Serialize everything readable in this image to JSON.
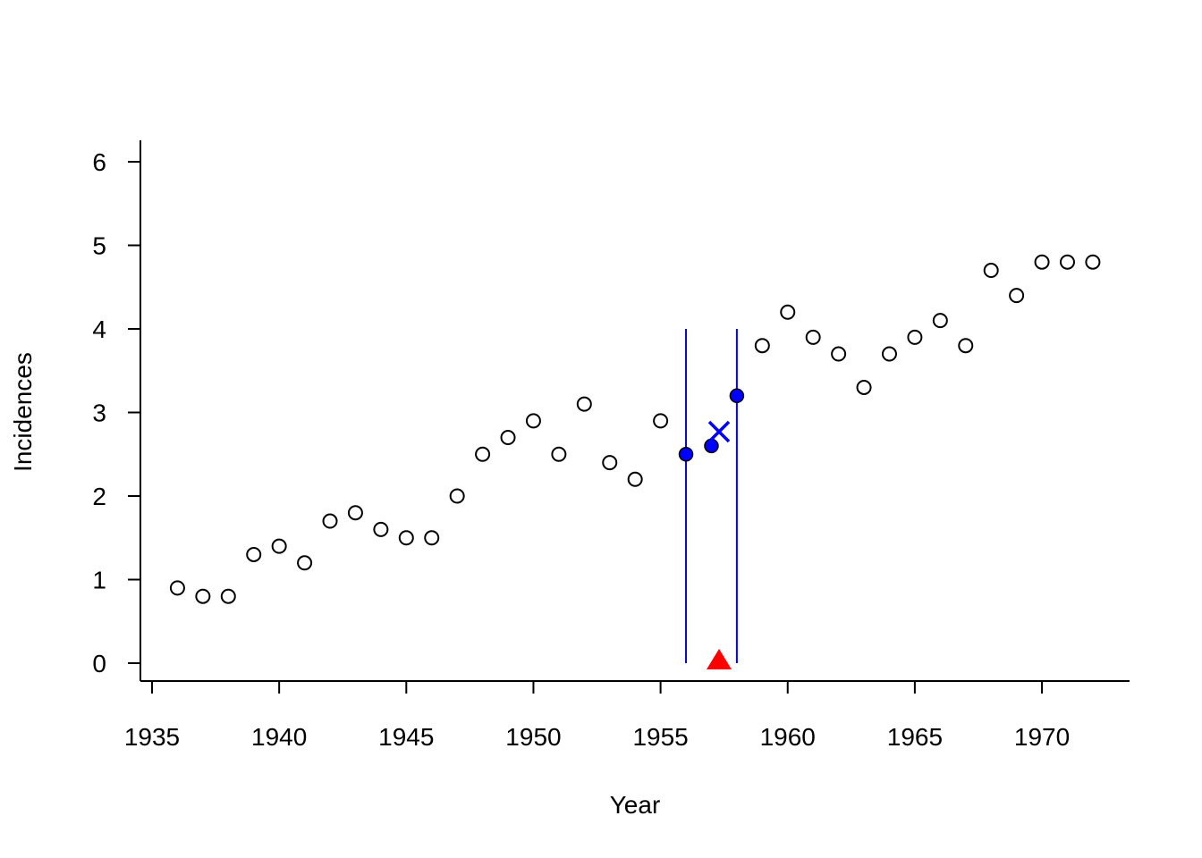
{
  "chart_data": {
    "type": "scatter",
    "title": "",
    "xlabel": "Year",
    "ylabel": "Incidences",
    "xlim": [
      1935,
      1972
    ],
    "ylim": [
      0,
      6
    ],
    "x_ticks": [
      1935,
      1940,
      1945,
      1950,
      1955,
      1960,
      1965,
      1970
    ],
    "y_ticks": [
      0,
      1,
      2,
      3,
      4,
      5,
      6
    ],
    "grid": false,
    "series": [
      {
        "marker": "open-circle",
        "color": "#000000",
        "points": [
          [
            1936,
            0.9
          ],
          [
            1937,
            0.8
          ],
          [
            1938,
            0.8
          ],
          [
            1939,
            1.3
          ],
          [
            1940,
            1.4
          ],
          [
            1941,
            1.2
          ],
          [
            1942,
            1.7
          ],
          [
            1943,
            1.8
          ],
          [
            1944,
            1.6
          ],
          [
            1945,
            1.5
          ],
          [
            1946,
            1.5
          ],
          [
            1947,
            2.0
          ],
          [
            1948,
            2.5
          ],
          [
            1949,
            2.7
          ],
          [
            1950,
            2.9
          ],
          [
            1951,
            2.5
          ],
          [
            1952,
            3.1
          ],
          [
            1953,
            2.4
          ],
          [
            1954,
            2.2
          ],
          [
            1955,
            2.9
          ],
          [
            1959,
            3.8
          ],
          [
            1960,
            4.2
          ],
          [
            1961,
            3.9
          ],
          [
            1962,
            3.7
          ],
          [
            1963,
            3.3
          ],
          [
            1964,
            3.7
          ],
          [
            1965,
            3.9
          ],
          [
            1966,
            4.1
          ],
          [
            1967,
            3.8
          ],
          [
            1968,
            4.7
          ],
          [
            1969,
            4.4
          ],
          [
            1970,
            4.8
          ],
          [
            1971,
            4.8
          ],
          [
            1972,
            4.8
          ]
        ]
      },
      {
        "marker": "filled-circle",
        "color": "#0000ff",
        "points": [
          [
            1956,
            2.5
          ],
          [
            1957,
            2.6
          ],
          [
            1958,
            3.2
          ]
        ]
      }
    ],
    "window_lines": {
      "color": "#0000ff",
      "x": [
        1956,
        1958
      ],
      "y_range": [
        0,
        4
      ]
    },
    "center_marker": {
      "marker": "x",
      "color": "#0000ff",
      "x": 1957.3,
      "y": 2.77
    },
    "axis_marker": {
      "marker": "filled-triangle",
      "color": "#ff0000",
      "x": 1957.3,
      "y": 0
    }
  }
}
